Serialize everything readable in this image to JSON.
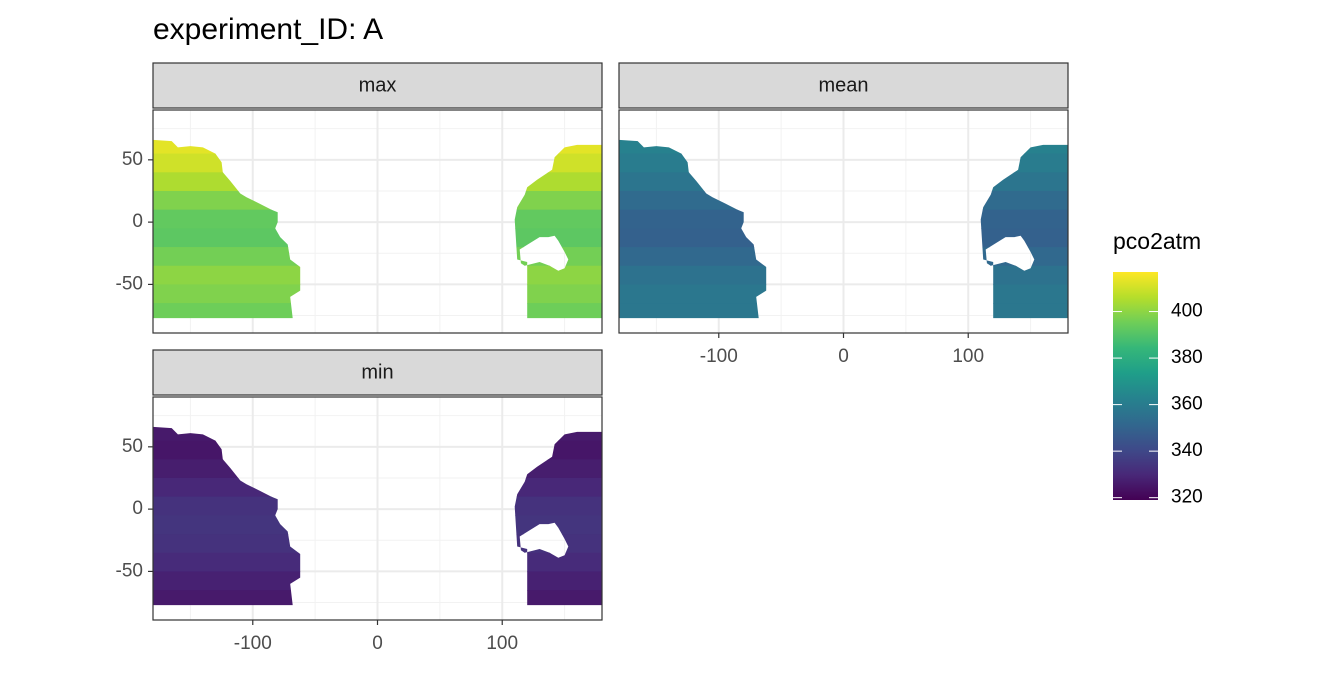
{
  "chart_data": {
    "type": "raster",
    "title": "experiment_ID: A",
    "xlim": [
      -180,
      180
    ],
    "ylim": [
      -89,
      90
    ],
    "xticks": [
      -100,
      0,
      100
    ],
    "yticks": [
      -50,
      0,
      50
    ],
    "xminor": [
      -150,
      -50,
      50,
      150
    ],
    "yminor": [
      -75,
      -25,
      25,
      75
    ],
    "grid": true,
    "lat_bins": [
      70,
      55,
      40,
      25,
      10,
      -5,
      -20,
      -35,
      -50,
      -65,
      -80
    ],
    "facets": [
      {
        "label": "max",
        "values": [
          413,
          410,
          405,
          398,
          393,
          392,
          396,
          400,
          398,
          395
        ]
      },
      {
        "label": "mean",
        "values": [
          362,
          360,
          357,
          353,
          350,
          349,
          352,
          356,
          358,
          358
        ]
      },
      {
        "label": "min",
        "values": [
          326,
          325,
          327,
          330,
          333,
          334,
          333,
          331,
          328,
          326
        ]
      }
    ],
    "legend": {
      "title": "pco2atm",
      "limits": [
        319,
        417
      ],
      "ticks": [
        320,
        340,
        360,
        380,
        400
      ],
      "colors": [
        "#440154",
        "#482878",
        "#3e4a89",
        "#31688e",
        "#26828e",
        "#1f9e89",
        "#35b779",
        "#6ece58",
        "#b5de2b",
        "#fde725"
      ]
    }
  }
}
